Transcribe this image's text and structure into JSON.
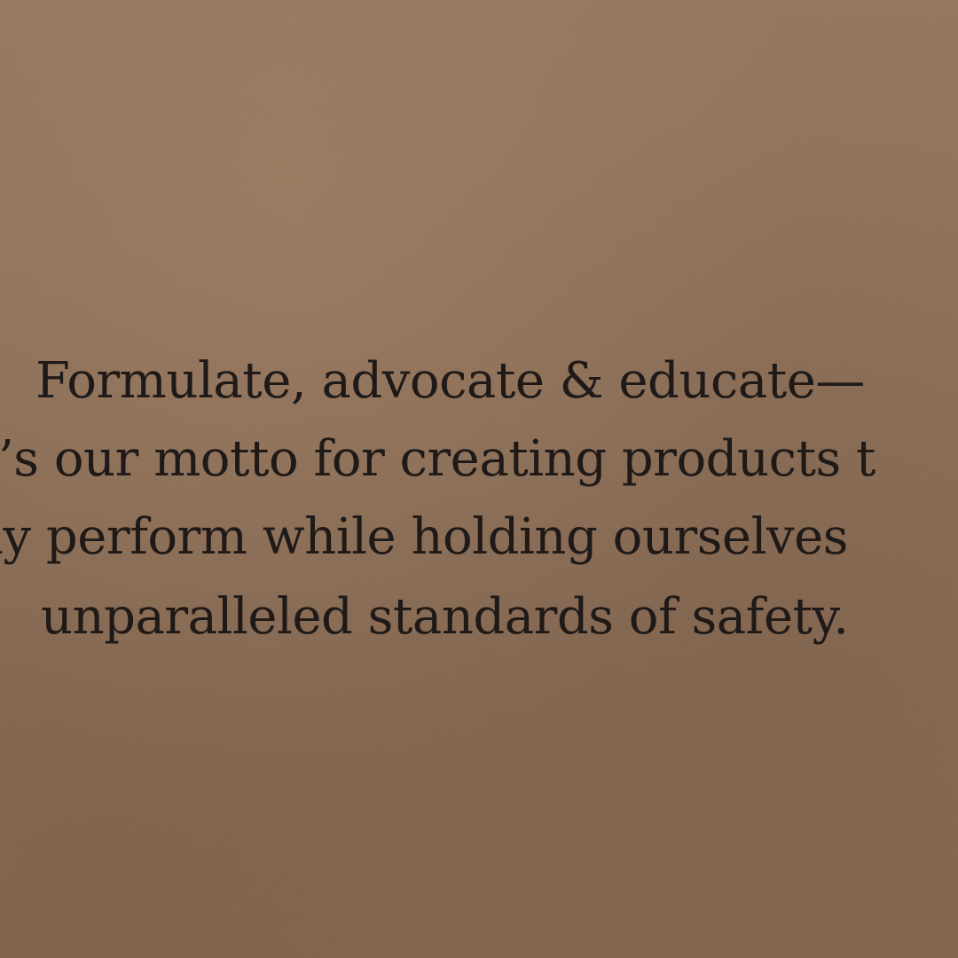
{
  "text": {
    "line1": "Formulate, advocate & educate—",
    "line2": "t’s our motto for creating products t",
    "line3": "ly perform while holding ourselves",
    "line4": "unparalleled standards of safety."
  },
  "colors": {
    "cardboard": "#8f7058",
    "ink": "#1f1a18"
  }
}
